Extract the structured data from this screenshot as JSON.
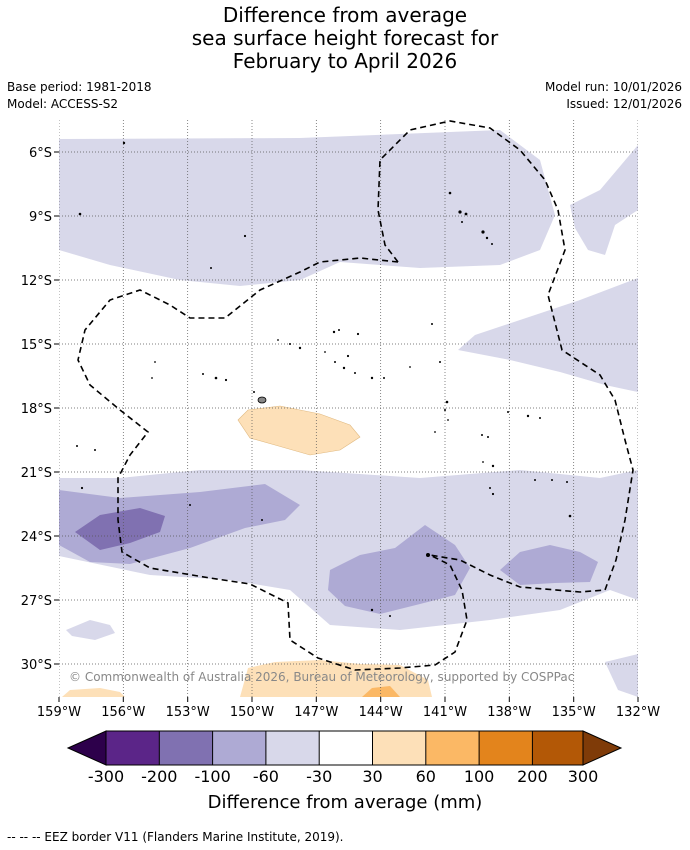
{
  "title_lines": [
    "Difference from average",
    "sea surface height forecast for",
    "February to April 2026"
  ],
  "left_meta": [
    "Base period: 1981-2018",
    "Model: ACCESS-S2"
  ],
  "right_meta": [
    "Model run: 10/01/2026",
    "Issued: 12/01/2026"
  ],
  "map": {
    "lon_range": [
      -159,
      -132
    ],
    "lat_range": [
      -31.6,
      -4.6
    ],
    "lon_ticks": [
      -159,
      -156,
      -153,
      -150,
      -147,
      -144,
      -141,
      -138,
      -135,
      -132
    ],
    "lat_ticks": [
      -6,
      -9,
      -12,
      -15,
      -18,
      -21,
      -24,
      -27,
      -30
    ],
    "lon_labels": [
      "159°W",
      "156°W",
      "153°W",
      "150°W",
      "147°W",
      "144°W",
      "141°W",
      "138°W",
      "135°W",
      "132°W"
    ],
    "lat_labels": [
      "6°S",
      "9°S",
      "12°S",
      "15°S",
      "18°S",
      "21°S",
      "24°S",
      "27°S",
      "30°S"
    ],
    "copyright": "© Commonwealth of Australia 2026, Bureau of Meteorology, supported by COSPPac"
  },
  "colorbar": {
    "title": "Difference from average (mm)",
    "labels": [
      "-300",
      "-200",
      "-100",
      "-60",
      "-30",
      "30",
      "60",
      "100",
      "200",
      "300"
    ],
    "colors": [
      "#5b2588",
      "#8071b1",
      "#aeaad4",
      "#d8d8ea",
      "#ffffff",
      "#fde0b8",
      "#fbb865",
      "#e3841c",
      "#b35806"
    ],
    "low_extend_color": "#2d004b",
    "high_extend_color": "#7f3b08"
  },
  "footnote": "-- -- -- EEZ border V11 (Flanders Marine Institute, 2019)."
}
